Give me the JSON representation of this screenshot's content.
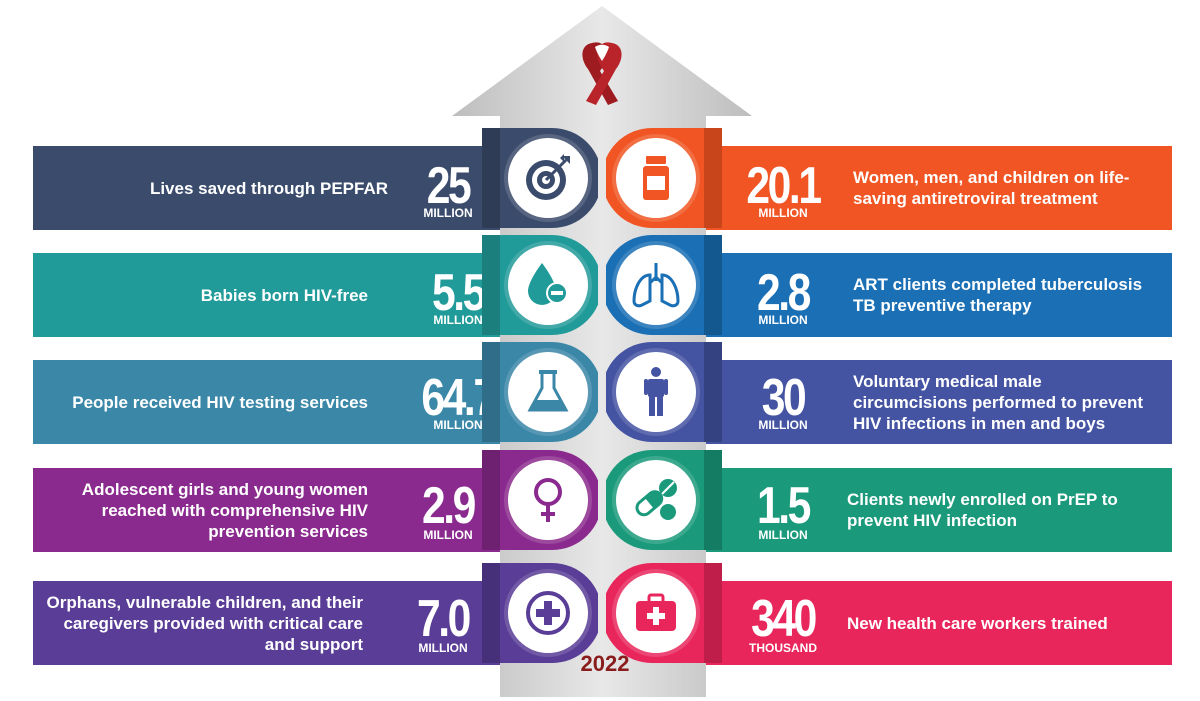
{
  "year": "2022",
  "colors": {
    "arrow": "#d9d9d9",
    "ribbon": "#9e1b20",
    "year": "#8a1c1c"
  },
  "left_stats": [
    {
      "value": "25",
      "unit": "MILLION",
      "label": "Lives saved through PEPFAR",
      "color": "#3a4b6c",
      "icon": "target-icon"
    },
    {
      "value": "5.5",
      "unit": "MILLION",
      "label": "Babies born HIV-free",
      "color": "#219b99",
      "icon": "drop-minus-icon"
    },
    {
      "value": "64.7",
      "unit": "MILLION",
      "label": "People received HIV testing services",
      "color": "#3b87a8",
      "icon": "flask-icon"
    },
    {
      "value": "2.9",
      "unit": "MILLION",
      "label": "Adolescent girls and young women reached with comprehensive HIV prevention services",
      "color": "#8b2a8e",
      "icon": "female-symbol-icon"
    },
    {
      "value": "7.0",
      "unit": "MILLION",
      "label": "Orphans, vulnerable children, and their caregivers provided with critical care and support",
      "color": "#5a3d96",
      "icon": "plus-cross-icon"
    }
  ],
  "right_stats": [
    {
      "value": "20.1",
      "unit": "MILLION",
      "label": "Women, men, and children on life-saving antiretroviral treatment",
      "color": "#f05523",
      "icon": "medicine-bottle-icon"
    },
    {
      "value": "2.8",
      "unit": "MILLION",
      "label": "ART clients completed tuberculosis TB preventive therapy",
      "color": "#1a6fb5",
      "icon": "lungs-icon"
    },
    {
      "value": "30",
      "unit": "MILLION",
      "label": "Voluntary medical male circumcisions performed to prevent HIV infections in men and boys",
      "color": "#4453a2",
      "icon": "male-figure-icon"
    },
    {
      "value": "1.5",
      "unit": "MILLION",
      "label": "Clients newly enrolled on PrEP to prevent HIV infection",
      "color": "#1a9a7b",
      "icon": "pills-icon"
    },
    {
      "value": "340",
      "unit": "THOUSAND",
      "label": "New health care workers trained",
      "color": "#e8265c",
      "icon": "first-aid-kit-icon"
    }
  ]
}
